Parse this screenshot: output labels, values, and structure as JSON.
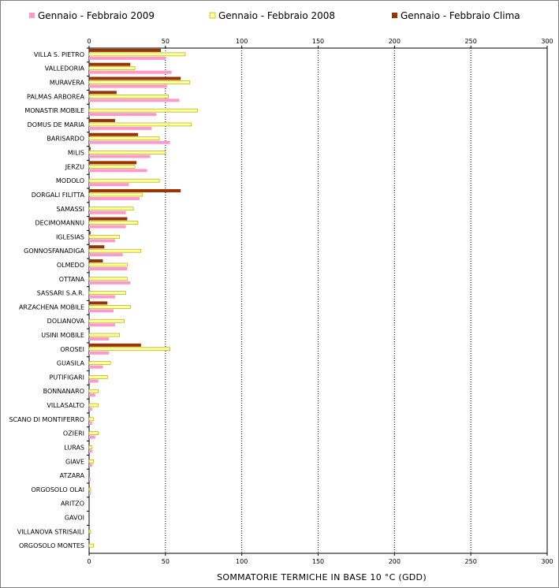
{
  "chart_data": {
    "type": "bar",
    "orientation": "horizontal",
    "xlabel": "SOMMATORIE TERMICHE IN BASE 10 °C (GDD)",
    "xlim": [
      0,
      300
    ],
    "xticks": [
      0,
      50,
      100,
      150,
      200,
      250,
      300
    ],
    "grid": "vertical-dotted",
    "legend_position": "top",
    "categories": [
      "VILLA S. PIETRO",
      "VALLEDORIA",
      "MURAVERA",
      "PALMAS ARBOREA",
      "MONASTIR MOBILE",
      "DOMUS DE MARIA",
      "BARISARDO",
      "MILIS",
      "JERZU",
      "MODOLO",
      "DORGALI FILITTA",
      "SAMASSI",
      "DECIMOMANNU",
      "IGLESIAS",
      "GONNOSFANADIGA",
      "OLMEDO",
      "OTTANA",
      "SASSARI S.A.R.",
      "ARZACHENA MOBILE",
      "DOLIANOVA",
      "USINI MOBILE",
      "OROSEI",
      "GUASILA",
      "PUTIFIGARI",
      "BONNANARO",
      "VILLASALTO",
      "SCANO DI MONTIFERRO",
      "OZIERI",
      "LURAS",
      "GIAVE",
      "ATZARA",
      "ORGOSOLO OLAI",
      "ARITZO",
      "GAVOI",
      "VILLANOVA STRISAILI",
      "ORGOSOLO MONTES"
    ],
    "series": [
      {
        "name": "Gennaio - Febbraio Clima",
        "color": "#993300",
        "values": [
          47,
          27,
          60,
          18,
          0,
          17,
          32,
          1,
          31,
          0,
          60,
          0,
          25,
          1,
          10,
          9,
          0,
          0,
          12,
          0,
          0,
          34,
          0,
          0,
          0,
          0,
          0,
          0,
          0,
          0,
          0,
          0,
          0,
          0,
          0,
          0
        ]
      },
      {
        "name": "Gennaio - Febbraio 2008",
        "color": "#ffff99",
        "values": [
          63,
          30,
          66,
          52,
          71,
          67,
          46,
          50,
          30,
          46,
          35,
          29,
          32,
          20,
          34,
          25,
          25,
          24,
          27,
          23,
          20,
          53,
          14,
          12,
          6,
          6,
          3,
          6,
          2,
          3,
          0,
          1,
          0,
          0,
          1,
          3
        ]
      },
      {
        "name": "Gennaio - Febbraio 2009",
        "color": "#ff99cc",
        "values": [
          50,
          54,
          51,
          59,
          44,
          41,
          53,
          40,
          38,
          26,
          33,
          24,
          24,
          17,
          22,
          25,
          27,
          17,
          16,
          17,
          13,
          13,
          9,
          6,
          4,
          2,
          2,
          4,
          2,
          2,
          1,
          1,
          0,
          0,
          0,
          0
        ]
      }
    ],
    "legend_order": [
      "Gennaio - Febbraio 2009",
      "Gennaio - Febbraio 2008",
      "Gennaio - Febbraio Clima"
    ]
  }
}
